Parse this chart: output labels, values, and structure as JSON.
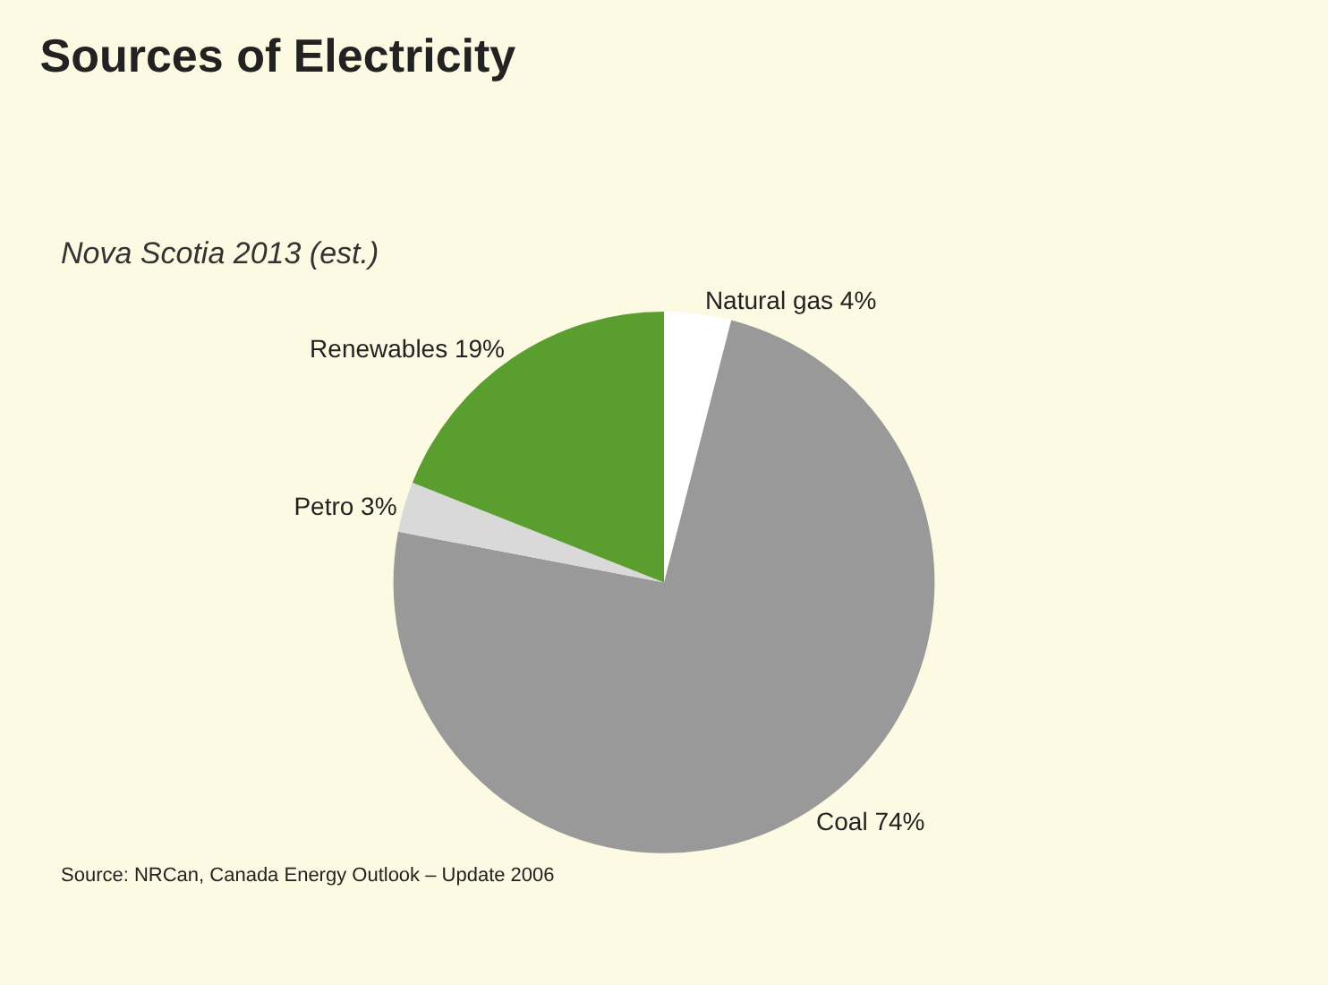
{
  "chart_data": {
    "type": "pie",
    "title": "Sources of Electricity",
    "subtitle": "Nova Scotia 2013 (est.)",
    "categories": [
      "Natural gas",
      "Coal",
      "Petro",
      "Renewables"
    ],
    "values": [
      4,
      74,
      3,
      19
    ],
    "value_labels": [
      "4%",
      "74%",
      "3%",
      "19%"
    ],
    "colors": [
      "#ffffff",
      "#999999",
      "#d9d9d9",
      "#5a9e2f"
    ],
    "legend": false,
    "annotations": [
      "Source: NRCan, Canada Energy Outlook – Update 2006"
    ]
  }
}
